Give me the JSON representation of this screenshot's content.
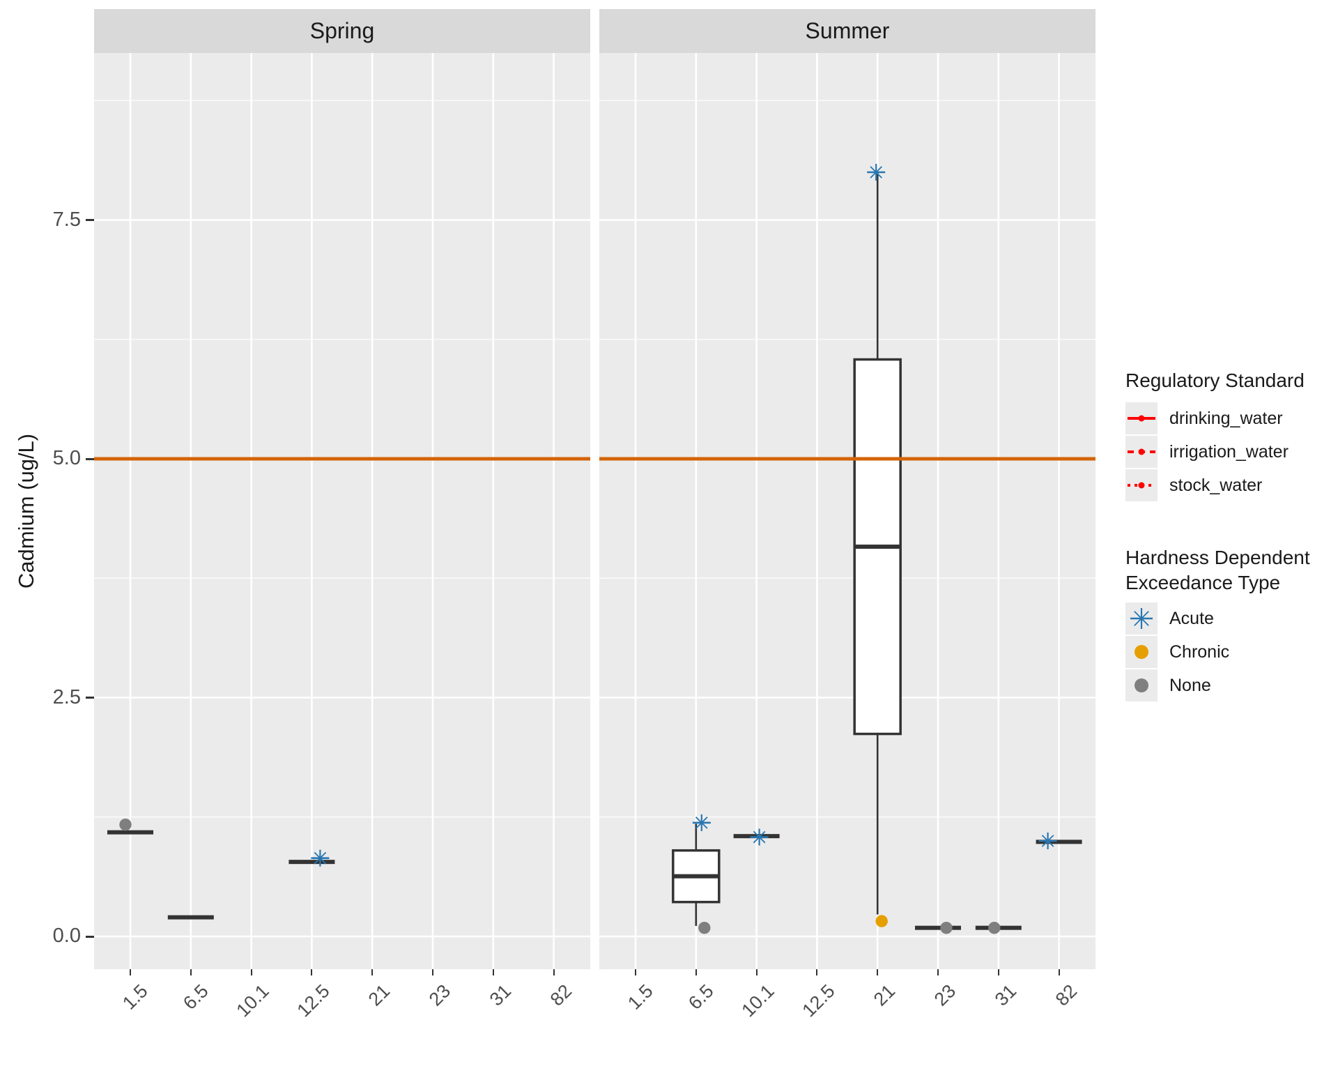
{
  "figure": {
    "background": "#FFFFFF",
    "panel_bg": "#EBEBEB",
    "strip_bg": "#D9D9D9",
    "grid_color": "#FFFFFF",
    "box_color": "#333333",
    "axis_text_color": "#4D4D4D"
  },
  "chart_data": {
    "type": "boxplot",
    "facets": [
      "Spring",
      "Summer"
    ],
    "x_categories": [
      "1.5",
      "6.5",
      "10.1",
      "12.5",
      "21",
      "23",
      "31",
      "82"
    ],
    "ylabel": "Cadmium (ug/L)",
    "y_tick_labels": [
      "0.0",
      "2.5",
      "5.0",
      "7.5"
    ],
    "y_ticks": [
      0.0,
      2.5,
      5.0,
      7.5
    ],
    "y_minor_ticks": [
      1.25,
      3.75,
      6.25,
      8.75
    ],
    "ylim": [
      -0.35,
      9.25
    ],
    "grid": true,
    "legend_position": "right",
    "reference_lines": [
      {
        "value": 5.0,
        "color": "#D46408",
        "meaning": "regulatory standard"
      }
    ],
    "groups": [
      {
        "facet": "Spring",
        "x": "1.5",
        "flat": 1.09,
        "points": [
          {
            "type": "None",
            "value": 1.17,
            "dx": -7
          }
        ]
      },
      {
        "facet": "Spring",
        "x": "6.5",
        "flat": 0.2,
        "points": []
      },
      {
        "facet": "Spring",
        "x": "12.5",
        "flat": 0.78,
        "points": [
          {
            "type": "Acute",
            "value": 0.82,
            "dx": 12
          }
        ]
      },
      {
        "facet": "Summer",
        "x": "6.5",
        "box": {
          "q1": 0.36,
          "median": 0.63,
          "q3": 0.9,
          "lo": 0.11,
          "hi": 1.18
        },
        "points": [
          {
            "type": "Acute",
            "value": 1.19,
            "dx": 8
          },
          {
            "type": "None",
            "value": 0.09,
            "dx": 12
          }
        ]
      },
      {
        "facet": "Summer",
        "x": "10.1",
        "flat": 1.05,
        "points": [
          {
            "type": "Acute",
            "value": 1.04,
            "dx": 4
          }
        ]
      },
      {
        "facet": "Summer",
        "x": "21",
        "box": {
          "q1": 2.12,
          "median": 4.08,
          "q3": 6.04,
          "lo": 0.23,
          "hi": 8.0
        },
        "points": [
          {
            "type": "Acute",
            "value": 8.0,
            "dx": -2
          },
          {
            "type": "Chronic",
            "value": 0.16,
            "dx": 6
          }
        ]
      },
      {
        "facet": "Summer",
        "x": "23",
        "flat": 0.09,
        "points": [
          {
            "type": "None",
            "value": 0.09,
            "dx": 12
          }
        ]
      },
      {
        "facet": "Summer",
        "x": "31",
        "flat": 0.09,
        "points": [
          {
            "type": "None",
            "value": 0.09,
            "dx": -6
          }
        ]
      },
      {
        "facet": "Summer",
        "x": "82",
        "flat": 0.99,
        "points": [
          {
            "type": "Acute",
            "value": 1.0,
            "dx": -16
          }
        ]
      }
    ],
    "marker_colors": {
      "Acute": "#2877B2",
      "Chronic": "#E69F00",
      "None": "#7F7F7F"
    }
  },
  "legend_regulatory": {
    "title": "Regulatory Standard",
    "color": "#FF0000",
    "items": [
      {
        "label": "drinking_water",
        "dash": "solid"
      },
      {
        "label": "irrigation_water",
        "dash": "dashed"
      },
      {
        "label": "stock_water",
        "dash": "dotted"
      }
    ]
  },
  "legend_exceedance": {
    "title_line1": "Hardness Dependent",
    "title_line2": "Exceedance Type",
    "items": [
      {
        "label": "Acute",
        "marker": "asterisk",
        "color": "#2877B2"
      },
      {
        "label": "Chronic",
        "marker": "dot",
        "color": "#E69F00"
      },
      {
        "label": "None",
        "marker": "dot",
        "color": "#7F7F7F"
      }
    ]
  }
}
